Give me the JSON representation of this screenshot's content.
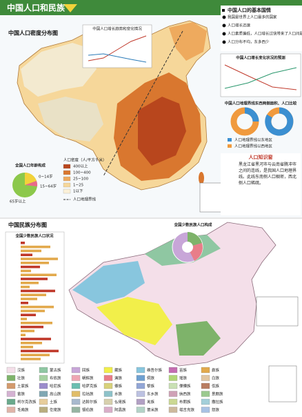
{
  "header": {
    "title": "中国人口和民族"
  },
  "density_map": {
    "title": "中国人口密度分布图",
    "growth_inset": {
      "title": "中国人口增长趋势和变化情况"
    },
    "facts": {
      "title": "中国人口的基本国情",
      "items": [
        "我国是世界上人口最多的国家",
        "人口增长迅速",
        "人口素质偏低，人口增长过快带来了人口问题",
        "人口分布不均，东多西少"
      ]
    },
    "forecast": {
      "title": "中国人口增长变化状况的预测"
    },
    "compare": {
      "title": "中国人口地理界线东西两侧面积、人口比较",
      "legend": [
        "人口地理界线以东地区",
        "人口地理界线以西地区"
      ]
    },
    "age": {
      "title": "全国人口年龄构成",
      "labels": [
        "0~14岁",
        "15~64岁",
        "65岁以上"
      ]
    },
    "density_legend": {
      "title": "人口密度（人/平方千米）",
      "items": [
        "400以上",
        "100~400",
        "25~100",
        "1~25",
        "1以下"
      ],
      "colors": [
        "#b8461d",
        "#d9772f",
        "#eeaa5e",
        "#f6d79a",
        "#fbf1d8"
      ],
      "line_label": "人口地理界线"
    },
    "knowledge": {
      "title": "人口知识窗",
      "text": "黑龙江省黑河市与云南省腾冲市之间的连线，是我国人口地理界线。此线东南侧人口稠密，西北侧人口稀疏。"
    }
  },
  "ethnic_map": {
    "title": "中国民族分布图",
    "pie_inset": {
      "title": "全国少数民族人口构成"
    },
    "bars_inset": {
      "title": "全国少数民族人口状况"
    },
    "legend": {
      "names": [
        "汉族",
        "蒙古族",
        "回族",
        "藏族",
        "维吾尔族",
        "苗族",
        "彝族",
        "壮族",
        "布依族",
        "朝鲜族",
        "满族",
        "侗族",
        "瑶族",
        "白族",
        "土家族",
        "哈尼族",
        "哈萨克族",
        "傣族",
        "黎族",
        "傈僳族",
        "佤族",
        "畲族",
        "高山族",
        "拉祜族",
        "水族",
        "东乡族",
        "纳西族",
        "景颇族",
        "柯尔克孜族",
        "土族",
        "达斡尔族",
        "仫佬族",
        "羌族",
        "布朗族",
        "撒拉族",
        "毛南族",
        "仡佬族",
        "锡伯族",
        "阿昌族",
        "普米族",
        "塔吉克族",
        "怒族"
      ],
      "colors": [
        "#f4dfe9",
        "#8fc7a2",
        "#c8a6d8",
        "#f2ef4a",
        "#88c6de",
        "#c46db0",
        "#e2a94c",
        "#7eb36a",
        "#a6d1a1",
        "#efa6b3",
        "#e87d89",
        "#6d9fd0",
        "#b1d776",
        "#e1c6a1",
        "#d39a6d",
        "#9b8ccc",
        "#6bbfb0",
        "#d8d27a",
        "#92a6d6",
        "#c9e0b4",
        "#b97d62",
        "#d4b2d2",
        "#7fa7b3",
        "#e0bd69",
        "#8dc2c9",
        "#bcc1e1",
        "#cfa1b6",
        "#9bc98e",
        "#6aa98c",
        "#e7cd9b",
        "#a8b9ce",
        "#d7d0ad",
        "#b2a0c4",
        "#cbd893",
        "#a3cfd9",
        "#e0b4a8",
        "#b9ad7e",
        "#96b4a2",
        "#d9aec8",
        "#b3d3c7",
        "#cdb99c",
        "#a8c2e4"
      ]
    }
  }
}
